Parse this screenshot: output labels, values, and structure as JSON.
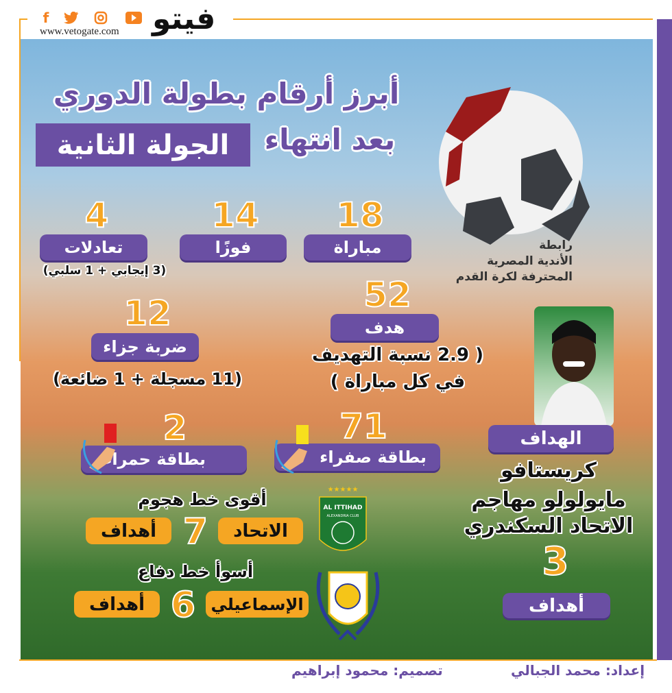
{
  "header": {
    "logo_text": "فيتو",
    "url": "www.vetogate.com",
    "social_icons": [
      "facebook-icon",
      "twitter-icon",
      "instagram-icon",
      "youtube-icon"
    ]
  },
  "title": {
    "line1": "أبرز أرقام بطولة الدوري",
    "line2_prefix": "بعد انتهاء",
    "line2_highlight": "الجولة الثانية"
  },
  "league": {
    "line1": "رابطة",
    "line2": "الأندية المصرية",
    "line3": "المحترفة لكرة القدم"
  },
  "stats": {
    "matches": {
      "value": "18",
      "label": "مباراة"
    },
    "wins": {
      "value": "14",
      "label": "فوزًا"
    },
    "draws": {
      "value": "4",
      "label": "تعادلات",
      "note": "(3 إيجابي + 1 سلبي)"
    },
    "goals": {
      "value": "52",
      "label": "هدف",
      "note1": "( 2.9 نسبة التهديف",
      "note2": "في كل مباراة )"
    },
    "penalties": {
      "value": "12",
      "label": "ضربة جزاء",
      "note": "(11 مسجلة + 1 ضائعة)"
    },
    "red_cards": {
      "value": "2",
      "label": "بطاقة حمراء"
    },
    "yellow_cards": {
      "value": "71",
      "label": "بطاقة صفراء"
    }
  },
  "top_scorer": {
    "label": "الهداف",
    "name1": "كريستافو",
    "name2": "مايولولو مهاجم",
    "name3": "الاتحاد السكندري",
    "goals": "3",
    "goals_label": "أهداف"
  },
  "attack": {
    "heading": "أقوى خط هجوم",
    "team": "الاتحاد",
    "goals": "7",
    "goals_label": "أهداف",
    "logo_text": "AL ITTIHAD ALEXANDRIA CLUB EGYPT"
  },
  "defense": {
    "heading": "أسوأ خط دفاع",
    "team": "الإسماعيلي",
    "goals": "6",
    "goals_label": "أهداف"
  },
  "footer": {
    "prepared": "إعداد: محمد الجبالي",
    "design": "تصميم: محمود إبراهيم"
  },
  "colors": {
    "purple": "#6a4fa3",
    "orange": "#f5a623",
    "red_card": "#e02020",
    "yellow_card": "#f7e01d"
  }
}
